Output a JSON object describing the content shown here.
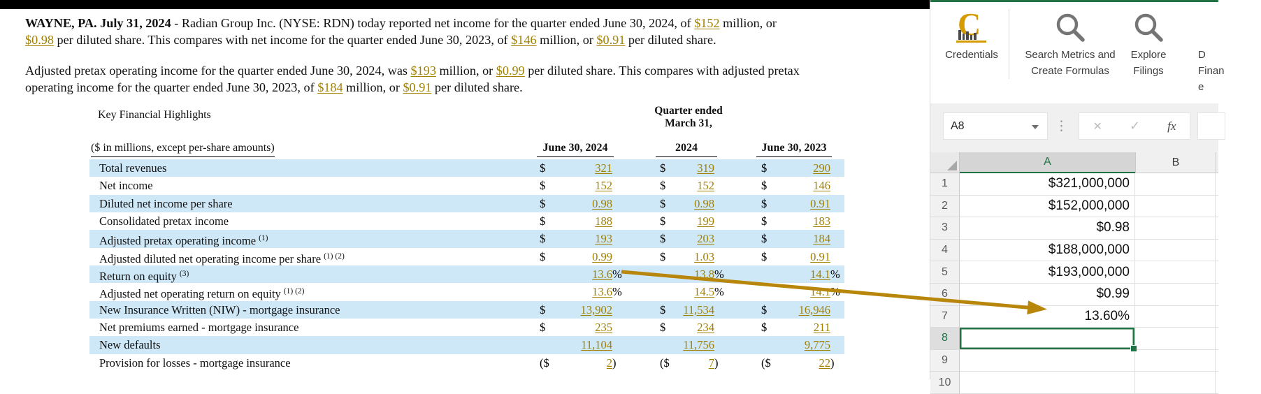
{
  "theme": {
    "accent_green": "#217346",
    "link_gold": "#a28000",
    "stripe_blue": "#cfe8f8",
    "arrow_gold": "#b8860b",
    "logo_gold": "#d49c00"
  },
  "document": {
    "paragraphs": [
      {
        "lines": [
          [
            {
              "t": "WAYNE, PA. July 31, 2024",
              "s": "bold"
            },
            {
              "t": " - Radian Group Inc. (NYSE: RDN) today reported net income for the quarter ended June 30, 2024, of ",
              "s": "plain"
            },
            {
              "t": "$152",
              "s": "link"
            },
            {
              "t": " million, or",
              "s": "plain"
            }
          ],
          [
            {
              "t": "$0.98",
              "s": "link"
            },
            {
              "t": " per diluted share. This compares with net income for the quarter ended June 30, 2023, of ",
              "s": "plain"
            },
            {
              "t": "$146",
              "s": "link"
            },
            {
              "t": " million, or ",
              "s": "plain"
            },
            {
              "t": "$0.91",
              "s": "link"
            },
            {
              "t": " per diluted share.",
              "s": "plain"
            }
          ]
        ]
      },
      {
        "lines": [
          [
            {
              "t": "Adjusted pretax operating income for the quarter ended June 30, 2024, was ",
              "s": "plain"
            },
            {
              "t": "$193",
              "s": "link"
            },
            {
              "t": " million, or ",
              "s": "plain"
            },
            {
              "t": "$0.99",
              "s": "link"
            },
            {
              "t": " per diluted share. This compares with adjusted pretax",
              "s": "plain"
            }
          ],
          [
            {
              "t": "operating income for the quarter ended June 30, 2023, of ",
              "s": "plain"
            },
            {
              "t": "$184",
              "s": "link"
            },
            {
              "t": " million, or ",
              "s": "plain"
            },
            {
              "t": "$0.91",
              "s": "link"
            },
            {
              "t": " per diluted share.",
              "s": "plain"
            }
          ]
        ]
      }
    ],
    "table": {
      "title": "Key Financial Highlights",
      "quarter_header": [
        "Quarter ended",
        "March 31,"
      ],
      "subtitle": "($ in millions, except per-share amounts)",
      "columns": [
        "June 30, 2024",
        "2024",
        "June 30, 2023"
      ],
      "rows": [
        {
          "label": "Total revenues",
          "sup": "",
          "cells": [
            [
              "$",
              "321",
              ""
            ],
            [
              "$",
              "319",
              ""
            ],
            [
              "$",
              "290",
              ""
            ]
          ]
        },
        {
          "label": "Net income",
          "sup": "",
          "cells": [
            [
              "$",
              "152",
              ""
            ],
            [
              "$",
              "152",
              ""
            ],
            [
              "$",
              "146",
              ""
            ]
          ]
        },
        {
          "label": "Diluted net income per share",
          "sup": "",
          "cells": [
            [
              "$",
              "0.98",
              ""
            ],
            [
              "$",
              "0.98",
              ""
            ],
            [
              "$",
              "0.91",
              ""
            ]
          ]
        },
        {
          "label": "Consolidated pretax income",
          "sup": "",
          "cells": [
            [
              "$",
              "188",
              ""
            ],
            [
              "$",
              "199",
              ""
            ],
            [
              "$",
              "183",
              ""
            ]
          ]
        },
        {
          "label": "Adjusted pretax operating income",
          "sup": "(1)",
          "cells": [
            [
              "$",
              "193",
              ""
            ],
            [
              "$",
              "203",
              ""
            ],
            [
              "$",
              "184",
              ""
            ]
          ]
        },
        {
          "label": "Adjusted diluted net operating income per share",
          "sup": "(1) (2)",
          "cells": [
            [
              "$",
              "0.99",
              ""
            ],
            [
              "$",
              "1.03",
              ""
            ],
            [
              "$",
              "0.91",
              ""
            ]
          ]
        },
        {
          "label": "Return on equity",
          "sup": "(3)",
          "cells": [
            [
              "",
              "13.6",
              "%"
            ],
            [
              "",
              "13.8",
              "%"
            ],
            [
              "",
              "14.1",
              "%"
            ]
          ]
        },
        {
          "label": "Adjusted net operating return on equity",
          "sup": "(1) (2)",
          "cells": [
            [
              "",
              "13.6",
              "%"
            ],
            [
              "",
              "14.5",
              "%"
            ],
            [
              "",
              "14.1",
              "%"
            ]
          ]
        },
        {
          "label": "New Insurance Written (NIW) - mortgage insurance",
          "sup": "",
          "cells": [
            [
              "$",
              "13,902",
              ""
            ],
            [
              "$",
              "11,534",
              ""
            ],
            [
              "$",
              "16,946",
              ""
            ]
          ]
        },
        {
          "label": "Net premiums earned - mortgage insurance",
          "sup": "",
          "cells": [
            [
              "$",
              "235",
              ""
            ],
            [
              "$",
              "234",
              ""
            ],
            [
              "$",
              "211",
              ""
            ]
          ]
        },
        {
          "label": "New defaults",
          "sup": "",
          "cells": [
            [
              "",
              "11,104",
              ""
            ],
            [
              "",
              "11,756",
              ""
            ],
            [
              "",
              "9,775",
              ""
            ]
          ]
        },
        {
          "label": "Provision for losses - mortgage insurance",
          "sup": "",
          "cells": [
            [
              "($",
              "2",
              ")"
            ],
            [
              "($",
              "7",
              ")"
            ],
            [
              "($",
              "22",
              ")"
            ]
          ]
        }
      ]
    }
  },
  "excel": {
    "ribbon": {
      "logo_text": "C",
      "items": [
        {
          "icon": "credentials-logo",
          "lines": [
            "Credentials"
          ]
        },
        {
          "icon": "search",
          "lines": [
            "Search Metrics and",
            "Create Formulas"
          ]
        },
        {
          "icon": "search",
          "lines": [
            "Explore",
            "Filings"
          ]
        },
        {
          "icon": "none",
          "lines": [
            "D",
            "Finan",
            "e"
          ]
        }
      ]
    },
    "name_box": "A8",
    "formula_bar": {
      "dots": "⋮",
      "cancel": "✕",
      "confirm": "✓",
      "fx": "fx"
    },
    "column_headers": [
      "A",
      "B"
    ],
    "active_column": "A",
    "active_row": "8",
    "rows": [
      {
        "n": "1",
        "value": "$321,000,000"
      },
      {
        "n": "2",
        "value": "$152,000,000"
      },
      {
        "n": "3",
        "value": "$0.98"
      },
      {
        "n": "4",
        "value": "$188,000,000"
      },
      {
        "n": "5",
        "value": "$193,000,000"
      },
      {
        "n": "6",
        "value": "$0.99"
      },
      {
        "n": "7",
        "value": "13.60%"
      },
      {
        "n": "8",
        "value": ""
      },
      {
        "n": "9",
        "value": ""
      },
      {
        "n": "10",
        "value": ""
      }
    ]
  },
  "annotation": {
    "type": "arrow",
    "from_text": "13.6%",
    "to_cell": "A7"
  }
}
